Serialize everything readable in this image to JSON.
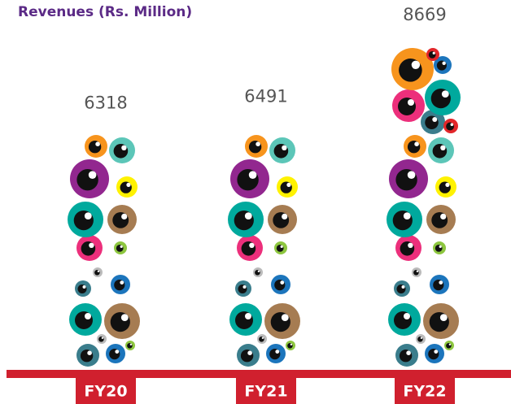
{
  "chart_data": {
    "type": "pictograph",
    "title": "Revenues (Rs. Million)",
    "categories": [
      "FY20",
      "FY21",
      "FY22"
    ],
    "values": [
      6318,
      6491,
      8669
    ]
  }
}
